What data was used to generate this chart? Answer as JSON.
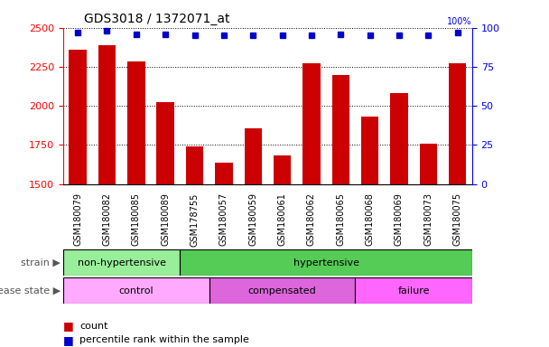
{
  "title": "GDS3018 / 1372071_at",
  "categories": [
    "GSM180079",
    "GSM180082",
    "GSM180085",
    "GSM180089",
    "GSM178755",
    "GSM180057",
    "GSM180059",
    "GSM180061",
    "GSM180062",
    "GSM180065",
    "GSM180068",
    "GSM180069",
    "GSM180073",
    "GSM180075"
  ],
  "counts": [
    2360,
    2390,
    2285,
    2025,
    1740,
    1635,
    1855,
    1685,
    2270,
    2200,
    1930,
    2080,
    1755,
    2270
  ],
  "percentiles": [
    97,
    98,
    96,
    96,
    95,
    95,
    95,
    95,
    95,
    96,
    95,
    95,
    95,
    97
  ],
  "ylim_left": [
    1500,
    2500
  ],
  "ylim_right": [
    0,
    100
  ],
  "yticks_left": [
    1500,
    1750,
    2000,
    2250,
    2500
  ],
  "yticks_right": [
    0,
    25,
    50,
    75,
    100
  ],
  "bar_color": "#cc0000",
  "dot_color": "#0000cc",
  "strain_groups": [
    {
      "label": "non-hypertensive",
      "start": 0,
      "end": 4,
      "color": "#99ee99"
    },
    {
      "label": "hypertensive",
      "start": 4,
      "end": 14,
      "color": "#55cc55"
    }
  ],
  "disease_groups": [
    {
      "label": "control",
      "start": 0,
      "end": 5,
      "color": "#ffaaff"
    },
    {
      "label": "compensated",
      "start": 5,
      "end": 10,
      "color": "#dd66dd"
    },
    {
      "label": "failure",
      "start": 10,
      "end": 14,
      "color": "#ff66ff"
    }
  ],
  "legend_count_label": "count",
  "legend_percentile_label": "percentile rank within the sample",
  "strain_label": "strain",
  "disease_label": "disease state"
}
